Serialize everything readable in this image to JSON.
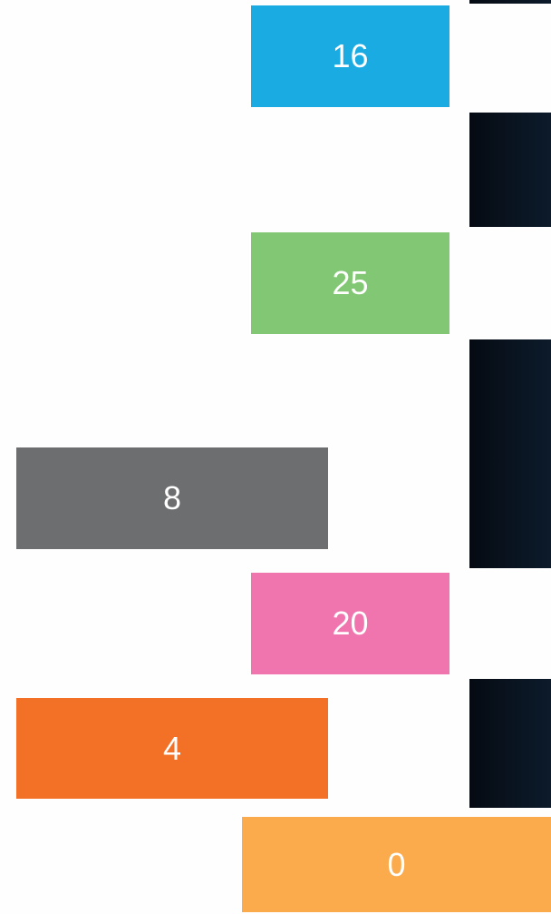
{
  "tiles": [
    {
      "label": "16"
    },
    {
      "label": "25"
    },
    {
      "label": "8"
    },
    {
      "label": "20"
    },
    {
      "label": "4"
    },
    {
      "label": "0"
    }
  ]
}
